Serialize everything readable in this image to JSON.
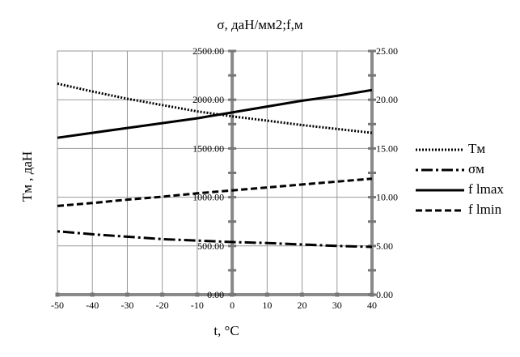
{
  "chart_data": {
    "type": "line",
    "title": "σ, даН/мм2;f,м",
    "xlabel": "t,  °C",
    "ylabel": "Tм , даН",
    "x": [
      -50,
      -40,
      -30,
      -20,
      -10,
      0,
      10,
      20,
      30,
      40
    ],
    "x_ticks": [
      "-50",
      "-40",
      "-30",
      "-20",
      "-10",
      "0",
      "10",
      "20",
      "30",
      "40"
    ],
    "xlim": [
      -50,
      40
    ],
    "ylim_left": [
      0,
      2500
    ],
    "ylim_right": [
      0,
      25
    ],
    "y_left_ticks": [
      "0.00",
      "500.00",
      "1000.00",
      "1500.00",
      "2000.00",
      "2500.00"
    ],
    "y_right_ticks": [
      "0.00",
      "5.00",
      "10.00",
      "15.00",
      "20.00",
      "25.00"
    ],
    "grid": true,
    "legend_position": "right",
    "series": [
      {
        "name": "Tм",
        "axis": "left",
        "style": "dotted",
        "values": [
          2165,
          2085,
          2010,
          1945,
          1880,
          1830,
          1785,
          1740,
          1700,
          1660
        ]
      },
      {
        "name": "σм",
        "axis": "right",
        "style": "dashdot",
        "values": [
          6.5,
          6.2,
          5.95,
          5.7,
          5.55,
          5.4,
          5.3,
          5.15,
          5.0,
          4.9
        ]
      },
      {
        "name": "f lmax",
        "axis": "right",
        "style": "solid",
        "values": [
          16.1,
          16.6,
          17.1,
          17.6,
          18.1,
          18.7,
          19.3,
          19.9,
          20.4,
          21.0
        ]
      },
      {
        "name": "f lmin",
        "axis": "right",
        "style": "dashed",
        "values": [
          9.1,
          9.4,
          9.75,
          10.05,
          10.4,
          10.7,
          11.0,
          11.3,
          11.6,
          11.9
        ]
      }
    ]
  }
}
